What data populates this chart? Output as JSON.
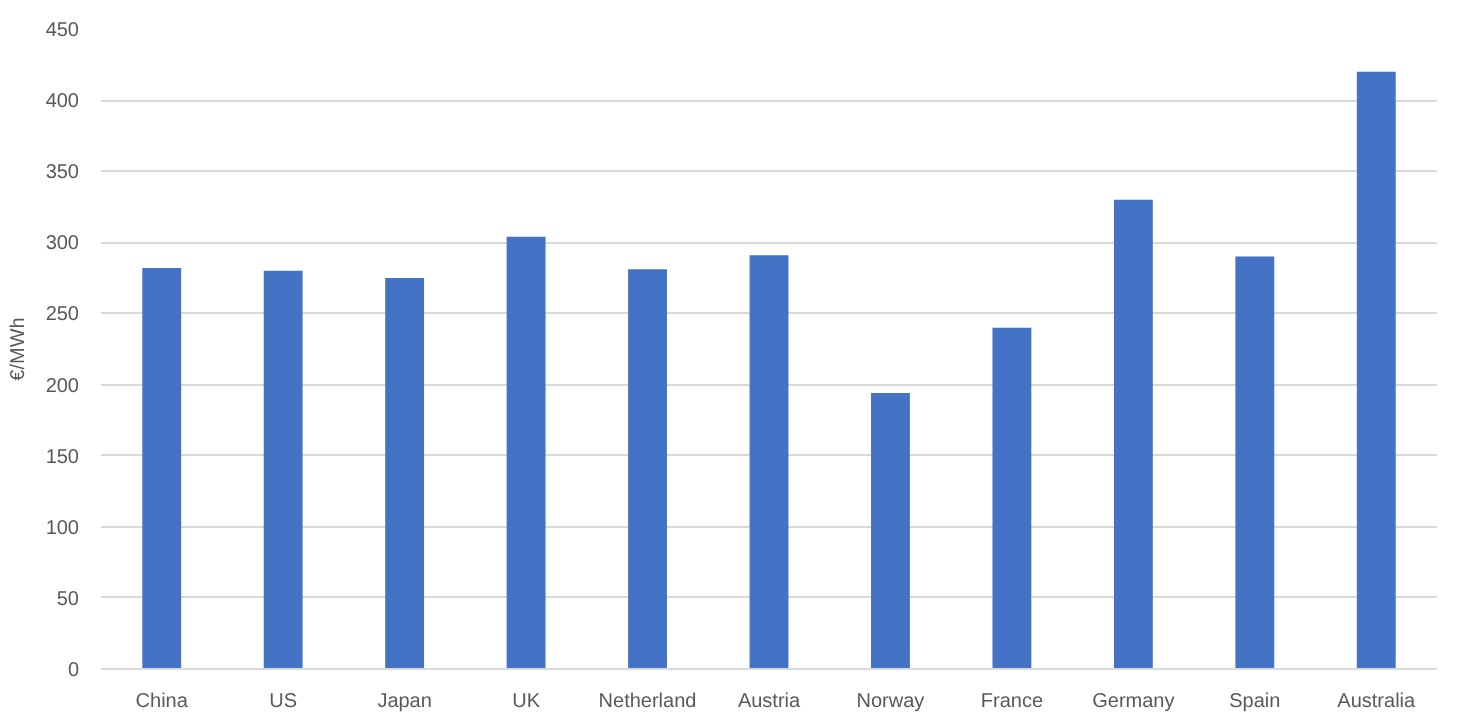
{
  "chart_data": {
    "type": "bar",
    "ylabel": "€/MWh",
    "categories": [
      "China",
      "US",
      "Japan",
      "UK",
      "Netherland",
      "Austria",
      "Norway",
      "France",
      "Germany",
      "Spain",
      "Australia"
    ],
    "values": [
      282,
      280,
      275,
      304,
      281,
      291,
      194,
      240,
      330,
      290,
      420
    ],
    "color": "#4472c4",
    "ylim": [
      0,
      450
    ],
    "yticks": [
      0,
      50,
      100,
      150,
      200,
      250,
      300,
      350,
      400,
      450
    ],
    "grid": "y"
  }
}
